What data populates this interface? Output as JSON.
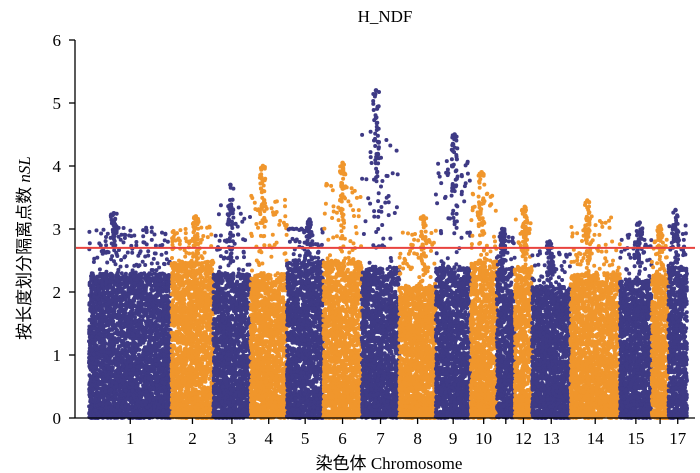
{
  "chart_data": {
    "type": "scatter",
    "subtype": "manhattan",
    "title": "H_NDF",
    "xlabel_cn": "染色体",
    "xlabel_en": "Chromosome",
    "ylabel_cn": "按长度划分隔离点数",
    "ylabel_em": "nSL",
    "ylim": [
      0,
      6
    ],
    "yticks": [
      0,
      1,
      2,
      3,
      4,
      5,
      6
    ],
    "threshold": 2.7,
    "threshold_color": "#e8433f",
    "colors": {
      "odd": "#3e3a85",
      "even": "#f0962c"
    },
    "chromosomes": [
      {
        "id": 1,
        "label": "1",
        "span": [
          0.0,
          13.8
        ],
        "typical_max": 2.3,
        "peak": 3.25
      },
      {
        "id": 2,
        "label": "2",
        "span": [
          13.8,
          20.8
        ],
        "typical_max": 2.5,
        "peak": 3.2
      },
      {
        "id": 3,
        "label": "3",
        "span": [
          20.8,
          27.0
        ],
        "typical_max": 2.3,
        "peak": 3.7
      },
      {
        "id": 4,
        "label": "4",
        "span": [
          27.0,
          33.1
        ],
        "typical_max": 2.3,
        "peak": 4.0
      },
      {
        "id": 5,
        "label": "5",
        "span": [
          33.1,
          39.2
        ],
        "typical_max": 2.5,
        "peak": 3.15
      },
      {
        "id": 6,
        "label": "6",
        "span": [
          39.2,
          45.6
        ],
        "typical_max": 2.5,
        "peak": 4.05
      },
      {
        "id": 7,
        "label": "7",
        "span": [
          45.6,
          51.9
        ],
        "typical_max": 2.4,
        "peak": 5.2
      },
      {
        "id": 8,
        "label": "8",
        "span": [
          51.9,
          58.0
        ],
        "typical_max": 2.1,
        "peak": 3.2
      },
      {
        "id": 9,
        "label": "9",
        "span": [
          58.0,
          63.8
        ],
        "typical_max": 2.4,
        "peak": 4.5
      },
      {
        "id": 10,
        "label": "10",
        "span": [
          63.8,
          68.2
        ],
        "typical_max": 2.5,
        "peak": 3.9
      },
      {
        "id": 11,
        "label": "",
        "span": [
          68.2,
          71.2
        ],
        "typical_max": 2.4,
        "peak": 3.0
      },
      {
        "id": 12,
        "label": "12",
        "span": [
          71.2,
          74.1
        ],
        "typical_max": 2.4,
        "peak": 3.35
      },
      {
        "id": 13,
        "label": "13",
        "span": [
          74.1,
          80.5
        ],
        "typical_max": 2.1,
        "peak": 2.8
      },
      {
        "id": 14,
        "label": "14",
        "span": [
          80.5,
          88.8
        ],
        "typical_max": 2.3,
        "peak": 3.45
      },
      {
        "id": 15,
        "label": "15",
        "span": [
          88.8,
          94.1
        ],
        "typical_max": 2.2,
        "peak": 3.1
      },
      {
        "id": 16,
        "label": "",
        "span": [
          94.1,
          96.9
        ],
        "typical_max": 2.3,
        "peak": 3.05
      },
      {
        "id": 17,
        "label": "17",
        "span": [
          96.9,
          100.0
        ],
        "typical_max": 2.4,
        "peak": 3.3
      }
    ]
  }
}
